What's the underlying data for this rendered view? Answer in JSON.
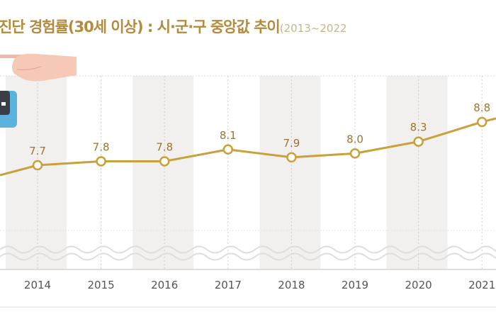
{
  "title": {
    "main": "진단 경험률(30세 이상) : 시·군·구 중앙값 추이",
    "range": "(2013~2022"
  },
  "colors": {
    "line": "#c9a03a",
    "label": "#9a7530",
    "band": "#f1f0ee",
    "axis_text": "#555555"
  },
  "chart_data": {
    "type": "line",
    "title": "진단 경험률(30세 이상) : 시·군·구 중앙값 추이 (2013~2022",
    "categories": [
      "2014",
      "2015",
      "2016",
      "2017",
      "2018",
      "2019",
      "2020",
      "2021"
    ],
    "values": [
      7.7,
      7.8,
      7.8,
      8.1,
      7.9,
      8.0,
      8.3,
      8.8
    ],
    "value_labels": [
      "7.7",
      "7.8",
      "7.8",
      "8.1",
      "7.9",
      "8.0",
      "8.3",
      "8.8"
    ],
    "xlabel": "",
    "ylabel": "",
    "grid": true,
    "y_axis_broken": true
  }
}
